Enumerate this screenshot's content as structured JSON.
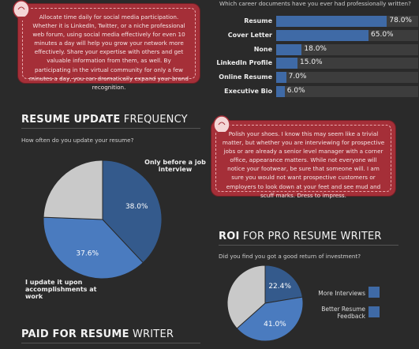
{
  "tips": [
    {
      "text": "Allocate time daily for social media participation. Whether it is LinkedIn, Twitter, or a niche professional web forum, using social media effectively for even 10 minutes a day will help you grow your network more effectively. Share your expertise with others and get valuable information from them, as well. By participating in the virtual community for only a few minutes a day, you can dramatically expand your brand recognition."
    },
    {
      "text": "Polish your shoes. I know this may seem like a trivial matter, but whether you are interviewing for prospective jobs or are already a senior level manager with a corner office, appearance matters. While not everyone will notice your footwear, be sure that someone will. I am sure you would not want prospective customers or employers to look down at your feet and see mud and scuff marks. Dress to impress."
    }
  ],
  "sections": {
    "documents": {
      "question": "Which career documents have you ever had professionally written?"
    },
    "frequency": {
      "title_bold": "RESUME UPDATE",
      "title_rest": " FREQUENCY",
      "question": "How often do you update your resume?"
    },
    "roi": {
      "title_bold": "ROI",
      "title_rest": " FOR PRO RESUME WRITER",
      "question": "Did you find you got a good return of investment?"
    },
    "paid": {
      "title_bold": "PAID FOR RESUME",
      "title_rest": " WRITER"
    }
  },
  "colors": {
    "accent_blue": "#3f6aa6",
    "dark_blue": "#345a8c",
    "mid_blue": "#4a7bbf",
    "grey": "#c9c9c9",
    "tip_red": "#a52f38"
  },
  "chart_data": [
    {
      "type": "bar",
      "orientation": "horizontal",
      "categories": [
        "Resume",
        "Cover Letter",
        "None",
        "LinkedIn Profile",
        "Online Resume",
        "Executive Bio"
      ],
      "values": [
        78.0,
        65.0,
        18.0,
        15.0,
        7.0,
        6.0
      ],
      "value_labels": [
        "78.0%",
        "65.0%",
        "18.0%",
        "15.0%",
        "7.0%",
        "6.0%"
      ],
      "xlim": [
        0,
        100
      ]
    },
    {
      "type": "pie",
      "labels": [
        "Only before a job interview",
        "I update it upon accomplishments at work",
        ""
      ],
      "values": [
        38.0,
        37.6,
        24.4
      ],
      "value_labels": [
        "38.0%",
        "37.6%",
        ""
      ]
    },
    {
      "type": "pie",
      "labels": [
        "More Interviews",
        "Better Resume Feedback",
        ""
      ],
      "values": [
        22.4,
        41.0,
        36.6
      ],
      "value_labels": [
        "22.4%",
        "41.0%",
        ""
      ]
    }
  ]
}
